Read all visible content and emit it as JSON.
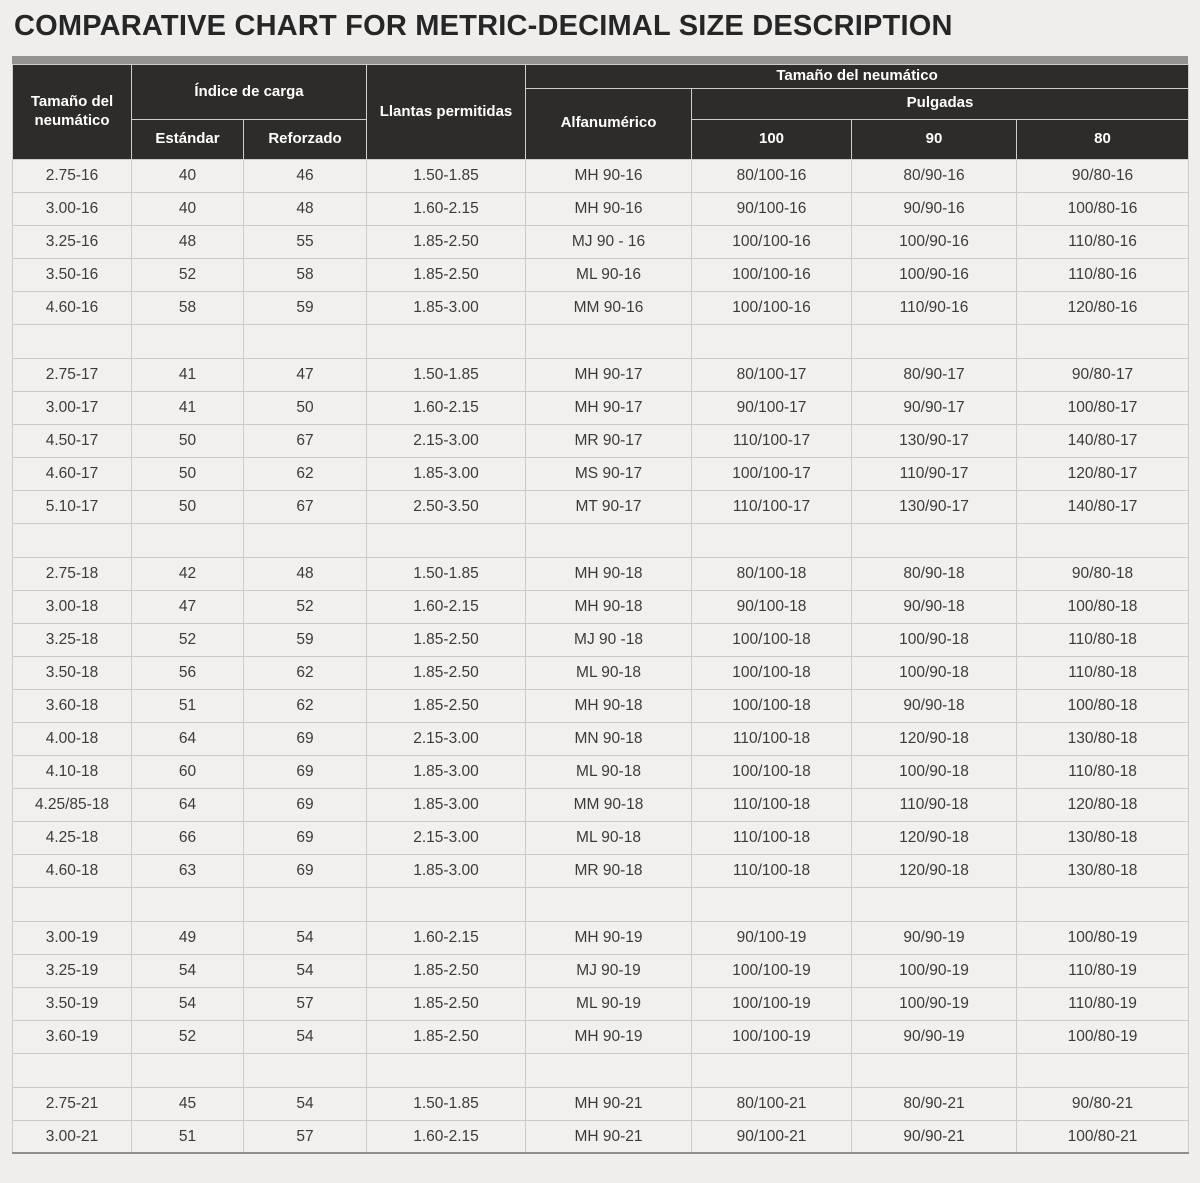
{
  "page": {
    "title": "COMPARATIVE CHART FOR METRIC-DECIMAL SIZE DESCRIPTION"
  },
  "table": {
    "header": {
      "tire_size": "Tamaño del neumático",
      "load_index": "Índice de carga",
      "standard": "Estándar",
      "reinforced": "Reforzado",
      "rims": "Llantas permitidas",
      "tire_size_right": "Tamaño del neumático",
      "alphanumeric": "Alfanumérico",
      "inches": "Pulgadas",
      "col_100": "100",
      "col_90": "90",
      "col_80": "80"
    }
  },
  "chart_data": {
    "type": "table",
    "title": "COMPARATIVE CHART FOR METRIC-DECIMAL SIZE DESCRIPTION",
    "columns": [
      "Tamaño del neumático",
      "Índice de carga - Estándar",
      "Índice de carga - Reforzado",
      "Llantas permitidas",
      "Tamaño del neumático - Alfanumérico",
      "Tamaño del neumático - Pulgadas 100",
      "Tamaño del neumático - Pulgadas 90",
      "Tamaño del neumático - Pulgadas 80"
    ],
    "groups": [
      {
        "rim": "16",
        "rows": [
          [
            "2.75-16",
            "40",
            "46",
            "1.50-1.85",
            "MH 90-16",
            "80/100-16",
            "80/90-16",
            "90/80-16"
          ],
          [
            "3.00-16",
            "40",
            "48",
            "1.60-2.15",
            "MH 90-16",
            "90/100-16",
            "90/90-16",
            "100/80-16"
          ],
          [
            "3.25-16",
            "48",
            "55",
            "1.85-2.50",
            "MJ 90 - 16",
            "100/100-16",
            "100/90-16",
            "110/80-16"
          ],
          [
            "3.50-16",
            "52",
            "58",
            "1.85-2.50",
            "ML 90-16",
            "100/100-16",
            "100/90-16",
            "110/80-16"
          ],
          [
            "4.60-16",
            "58",
            "59",
            "1.85-3.00",
            "MM 90-16",
            "100/100-16",
            "110/90-16",
            "120/80-16"
          ]
        ]
      },
      {
        "rim": "17",
        "rows": [
          [
            "2.75-17",
            "41",
            "47",
            "1.50-1.85",
            "MH 90-17",
            "80/100-17",
            "80/90-17",
            "90/80-17"
          ],
          [
            "3.00-17",
            "41",
            "50",
            "1.60-2.15",
            "MH 90-17",
            "90/100-17",
            "90/90-17",
            "100/80-17"
          ],
          [
            "4.50-17",
            "50",
            "67",
            "2.15-3.00",
            "MR 90-17",
            "110/100-17",
            "130/90-17",
            "140/80-17"
          ],
          [
            "4.60-17",
            "50",
            "62",
            "1.85-3.00",
            "MS 90-17",
            "100/100-17",
            "110/90-17",
            "120/80-17"
          ],
          [
            "5.10-17",
            "50",
            "67",
            "2.50-3.50",
            "MT 90-17",
            "110/100-17",
            "130/90-17",
            "140/80-17"
          ]
        ]
      },
      {
        "rim": "18",
        "rows": [
          [
            "2.75-18",
            "42",
            "48",
            "1.50-1.85",
            "MH 90-18",
            "80/100-18",
            "80/90-18",
            "90/80-18"
          ],
          [
            "3.00-18",
            "47",
            "52",
            "1.60-2.15",
            "MH 90-18",
            "90/100-18",
            "90/90-18",
            "100/80-18"
          ],
          [
            "3.25-18",
            "52",
            "59",
            "1.85-2.50",
            "MJ 90 -18",
            "100/100-18",
            "100/90-18",
            "110/80-18"
          ],
          [
            "3.50-18",
            "56",
            "62",
            "1.85-2.50",
            "ML 90-18",
            "100/100-18",
            "100/90-18",
            "110/80-18"
          ],
          [
            "3.60-18",
            "51",
            "62",
            "1.85-2.50",
            "MH 90-18",
            "100/100-18",
            "90/90-18",
            "100/80-18"
          ],
          [
            "4.00-18",
            "64",
            "69",
            "2.15-3.00",
            "MN 90-18",
            "110/100-18",
            "120/90-18",
            "130/80-18"
          ],
          [
            "4.10-18",
            "60",
            "69",
            "1.85-3.00",
            "ML 90-18",
            "100/100-18",
            "100/90-18",
            "110/80-18"
          ],
          [
            "4.25/85-18",
            "64",
            "69",
            "1.85-3.00",
            "MM 90-18",
            "110/100-18",
            "110/90-18",
            "120/80-18"
          ],
          [
            "4.25-18",
            "66",
            "69",
            "2.15-3.00",
            "ML 90-18",
            "110/100-18",
            "120/90-18",
            "130/80-18"
          ],
          [
            "4.60-18",
            "63",
            "69",
            "1.85-3.00",
            "MR 90-18",
            "110/100-18",
            "120/90-18",
            "130/80-18"
          ]
        ]
      },
      {
        "rim": "19",
        "rows": [
          [
            "3.00-19",
            "49",
            "54",
            "1.60-2.15",
            "MH 90-19",
            "90/100-19",
            "90/90-19",
            "100/80-19"
          ],
          [
            "3.25-19",
            "54",
            "54",
            "1.85-2.50",
            "MJ 90-19",
            "100/100-19",
            "100/90-19",
            "110/80-19"
          ],
          [
            "3.50-19",
            "54",
            "57",
            "1.85-2.50",
            "ML 90-19",
            "100/100-19",
            "100/90-19",
            "110/80-19"
          ],
          [
            "3.60-19",
            "52",
            "54",
            "1.85-2.50",
            "MH 90-19",
            "100/100-19",
            "90/90-19",
            "100/80-19"
          ]
        ]
      },
      {
        "rim": "21",
        "rows": [
          [
            "2.75-21",
            "45",
            "54",
            "1.50-1.85",
            "MH 90-21",
            "80/100-21",
            "80/90-21",
            "90/80-21"
          ],
          [
            "3.00-21",
            "51",
            "57",
            "1.60-2.15",
            "MH 90-21",
            "90/100-21",
            "90/90-21",
            "100/80-21"
          ]
        ]
      }
    ],
    "layout": {
      "header_background": "#2d2c2a",
      "header_text_color": "#ffffff",
      "body_background": "#f1f0ee",
      "body_text_color": "#3b3b3b",
      "grid_color": "#cbcac8",
      "top_accent_bar_color": "#939393",
      "page_background": "#efeeec"
    }
  }
}
